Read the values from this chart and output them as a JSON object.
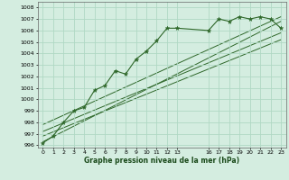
{
  "title": "Graphe pression niveau de la mer (hPa)",
  "bg_color": "#d4ede0",
  "grid_color": "#b0d8c4",
  "line_color": "#2d6628",
  "ylim": [
    995.8,
    1008.5
  ],
  "xlim": [
    -0.5,
    23.5
  ],
  "yticks": [
    996,
    997,
    998,
    999,
    1000,
    1001,
    1002,
    1003,
    1004,
    1005,
    1006,
    1007,
    1008
  ],
  "xticks": [
    0,
    1,
    2,
    3,
    4,
    5,
    6,
    7,
    8,
    9,
    10,
    11,
    12,
    13,
    16,
    17,
    18,
    19,
    20,
    21,
    22,
    23
  ],
  "xtick_labels": [
    "0",
    "1",
    "2",
    "3",
    "4",
    "5",
    "6",
    "7",
    "8",
    "9",
    "10",
    "11",
    "12",
    "13",
    "16",
    "17",
    "18",
    "19",
    "20",
    "21",
    "22",
    "23"
  ],
  "main_data_x": [
    0,
    1,
    2,
    3,
    4,
    5,
    6,
    7,
    8,
    9,
    10,
    11,
    12,
    13,
    16,
    17,
    18,
    19,
    20,
    21,
    22,
    23
  ],
  "main_data_y": [
    996.2,
    996.8,
    998.0,
    999.0,
    999.3,
    1000.8,
    1001.2,
    1002.5,
    1002.2,
    1003.5,
    1004.2,
    1005.1,
    1006.2,
    1006.2,
    1006.0,
    1007.0,
    1006.8,
    1007.2,
    1007.0,
    1007.2,
    1007.0,
    1006.2
  ],
  "trend_lines": [
    {
      "x": [
        0,
        23
      ],
      "y": [
        996.3,
        1006.8
      ]
    },
    {
      "x": [
        0,
        23
      ],
      "y": [
        996.8,
        1005.2
      ]
    },
    {
      "x": [
        0,
        23
      ],
      "y": [
        997.2,
        1005.8
      ]
    },
    {
      "x": [
        0,
        23
      ],
      "y": [
        997.8,
        1007.2
      ]
    }
  ]
}
